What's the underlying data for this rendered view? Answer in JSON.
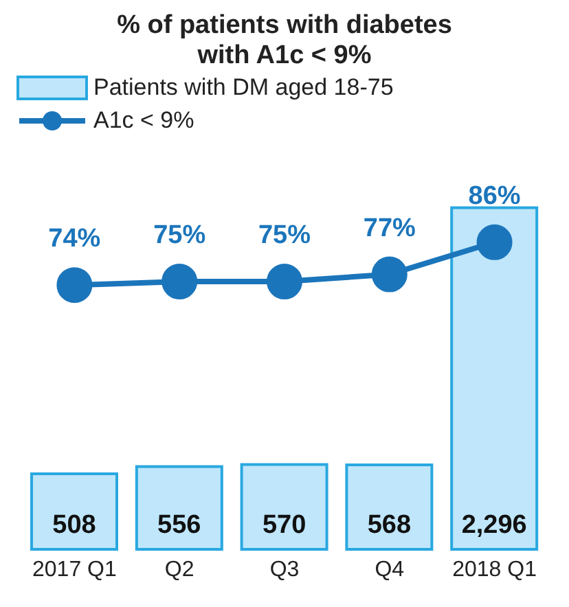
{
  "chart_data": {
    "type": "bar",
    "title": "% of patients with diabetes\nwith A1c < 9%",
    "categories": [
      "2017 Q1",
      "Q2",
      "Q3",
      "Q4",
      "2018 Q1"
    ],
    "series": [
      {
        "name": "Patients with DM aged 18-75",
        "color": "#bfe6fb",
        "values": [
          508,
          556,
          570,
          568,
          2296
        ],
        "value_labels": [
          "508",
          "556",
          "570",
          "568",
          "2,296"
        ]
      },
      {
        "name": "A1c < 9%",
        "type": "line",
        "axis": "y2",
        "color": "#1b75bb",
        "values": [
          74,
          75,
          75,
          77,
          86
        ],
        "value_labels": [
          "74%",
          "75%",
          "75%",
          "77%",
          "86%"
        ]
      }
    ],
    "legend": "top left",
    "marker": "circle",
    "grid": false,
    "tick_labels": "x"
  }
}
